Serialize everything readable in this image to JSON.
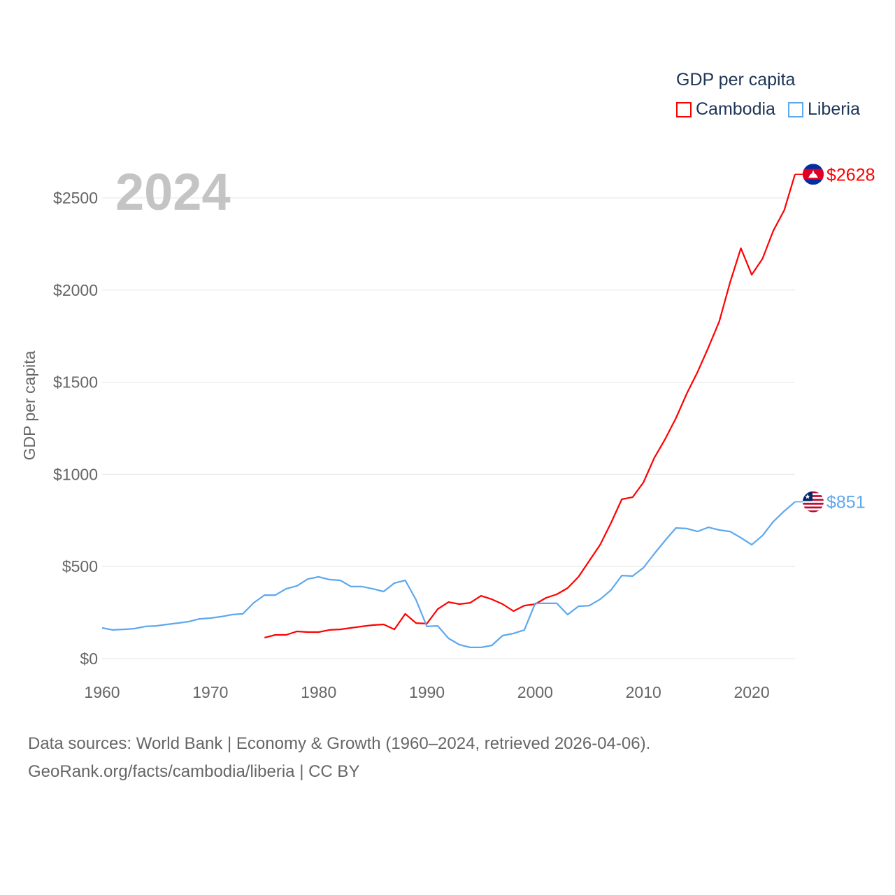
{
  "chart_data": {
    "type": "line",
    "title": "GDP per capita",
    "year_label": "2024",
    "xlabel": "",
    "ylabel": "GDP per capita",
    "xlim": [
      1960,
      2024
    ],
    "ylim": [
      0,
      2500
    ],
    "x_ticks": [
      1960,
      1970,
      1980,
      1990,
      2000,
      2010,
      2020
    ],
    "y_ticks": [
      0,
      500,
      1000,
      1500,
      2000,
      2500
    ],
    "y_tick_labels": [
      "$0",
      "$500",
      "$1000",
      "$1500",
      "$2000",
      "$2500"
    ],
    "grid": true,
    "legend_placement": "top-right",
    "series": [
      {
        "name": "Cambodia",
        "color": "#ff0000",
        "end_label": "$2628",
        "flag": "cambodia-flag",
        "start_year": 1975,
        "values": [
          114,
          129,
          129,
          148,
          144,
          144,
          156,
          159,
          167,
          175,
          182,
          186,
          159,
          243,
          193,
          190,
          269,
          307,
          296,
          303,
          341,
          322,
          296,
          258,
          288,
          296,
          330,
          349,
          383,
          444,
          531,
          618,
          736,
          865,
          876,
          956,
          1089,
          1191,
          1305,
          1438,
          1555,
          1688,
          1829,
          2041,
          2227,
          2083,
          2170,
          2322,
          2432,
          2628
        ]
      },
      {
        "name": "Liberia",
        "color": "#5da8ee",
        "end_label": "$851",
        "flag": "liberia-flag",
        "start_year": 1960,
        "values": [
          167,
          156,
          159,
          163,
          175,
          178,
          186,
          193,
          201,
          216,
          220,
          228,
          239,
          243,
          303,
          345,
          345,
          379,
          395,
          432,
          444,
          429,
          425,
          391,
          391,
          379,
          364,
          410,
          425,
          319,
          175,
          178,
          110,
          76,
          61,
          61,
          72,
          125,
          137,
          156,
          300,
          300,
          300,
          239,
          284,
          288,
          322,
          372,
          451,
          448,
          493,
          569,
          641,
          709,
          706,
          690,
          713,
          698,
          690,
          656,
          618,
          668,
          744,
          800,
          851
        ]
      }
    ]
  },
  "footer": {
    "line1": "Data sources: World Bank | Economy & Growth (1960–2024, retrieved 2026-04-06).",
    "line2": "GeoRank.org/facts/cambodia/liberia | CC BY"
  }
}
